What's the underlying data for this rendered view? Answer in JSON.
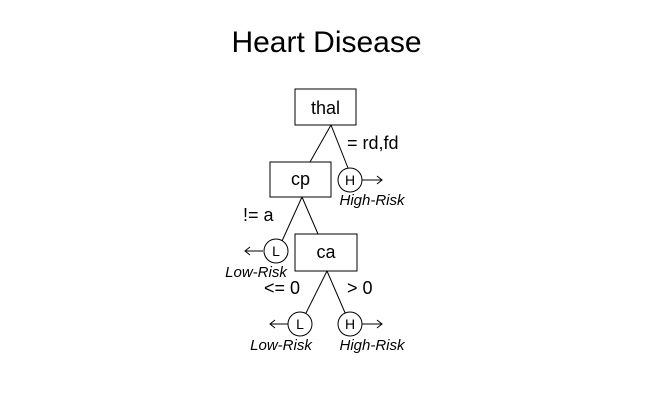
{
  "title": "Heart Disease",
  "nodes": {
    "thal": "thal",
    "cp": "cp",
    "ca": "ca"
  },
  "edges": {
    "thal_right": "= rd,fd",
    "cp_left": "!= a",
    "ca_left": "<= 0",
    "ca_right": "> 0"
  },
  "leaves": {
    "thal_right": {
      "letter": "H",
      "label": "High-Risk"
    },
    "cp_left": {
      "letter": "L",
      "label": "Low-Risk"
    },
    "ca_left": {
      "letter": "L",
      "label": "Low-Risk"
    },
    "ca_right": {
      "letter": "H",
      "label": "High-Risk"
    }
  }
}
